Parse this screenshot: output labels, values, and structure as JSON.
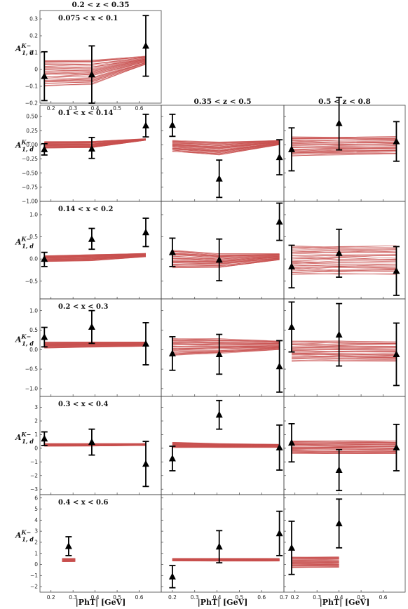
{
  "figure": {
    "column_titles": [
      "0.2 < z < 0.35",
      "0.35 < z < 0.5",
      "0.5 < z < 0.8"
    ],
    "row_titles": [
      "0.075 < x < 0.1",
      "0.1 < x < 0.14",
      "0.14 < x < 0.2",
      "0.2 < x < 0.3",
      "0.3 < x < 0.4",
      "0.4 < x < 0.6"
    ],
    "ylabel": "A1,d^K−",
    "xlabel": "|PhT| [GeV]",
    "colors": {
      "band": "#c8504f",
      "data": "#000000",
      "axes": "#444444"
    }
  },
  "chart_data": {
    "type": "scatter",
    "xlabel": "|PhT| [GeV]",
    "ylabel": "A1,d^K−",
    "xlim": [
      0.15,
      0.7
    ],
    "x_ticks": [
      0.2,
      0.3,
      0.4,
      0.5,
      0.6
    ],
    "x_ticks_col2": [
      0.2,
      0.3,
      0.4,
      0.5,
      0.6,
      0.7
    ],
    "rows": [
      {
        "label": "0.075 < x < 0.1",
        "ylim": [
          -0.2,
          0.35
        ],
        "yticks": [
          -0.2,
          -0.1,
          0.0,
          0.1,
          0.2,
          0.3
        ],
        "ytick_labels": [
          "−0.2",
          "−0.1",
          "0",
          "0.1",
          "0.2",
          "0.3"
        ]
      },
      {
        "label": "0.1 < x < 0.14",
        "ylim": [
          -1.0,
          0.7
        ],
        "yticks": [
          -1.0,
          -0.75,
          -0.5,
          -0.25,
          0.0,
          0.25,
          0.5
        ],
        "ytick_labels": [
          "−1.00",
          "−0.75",
          "−0.50",
          "−0.25",
          "0.00",
          "0.25",
          "0.50"
        ]
      },
      {
        "label": "0.14 < x < 0.2",
        "ylim": [
          -0.9,
          1.3
        ],
        "yticks": [
          -0.5,
          0.0,
          0.5,
          1.0
        ],
        "ytick_labels": [
          "−0.5",
          "0.0",
          "0.5",
          "1.0"
        ]
      },
      {
        "label": "0.2 < x < 0.3",
        "ylim": [
          -1.2,
          1.3
        ],
        "yticks": [
          -1.0,
          -0.5,
          0.0,
          0.5,
          1.0
        ],
        "ytick_labels": [
          "−1.0",
          "−0.5",
          "0.0",
          "0.5",
          "1.0"
        ]
      },
      {
        "label": "0.3 < x < 0.4",
        "ylim": [
          -3.4,
          3.8
        ],
        "yticks": [
          -3,
          -2,
          -1,
          0,
          1,
          2,
          3
        ],
        "ytick_labels": [
          "−3",
          "−2",
          "−1",
          "0",
          "1",
          "2",
          "3"
        ]
      },
      {
        "label": "0.4 < x < 0.6",
        "ylim": [
          -2.5,
          6.3
        ],
        "yticks": [
          -2,
          -1,
          0,
          1,
          2,
          3,
          4,
          5,
          6
        ],
        "ytick_labels": [
          "−2",
          "−1",
          "0",
          "1",
          "2",
          "3",
          "4",
          "5",
          "6"
        ]
      }
    ],
    "panels": [
      {
        "row": 0,
        "col": 0,
        "x": [
          0.17,
          0.385,
          0.63
        ],
        "y": [
          -0.04,
          -0.03,
          0.14
        ],
        "yerr_low": [
          0.145,
          0.17,
          0.18
        ],
        "yerr_high": [
          0.145,
          0.17,
          0.18
        ],
        "band": {
          "x": [
            0.17,
            0.385,
            0.63
          ],
          "lo": [
            -0.1,
            -0.09,
            0.03
          ],
          "hi": [
            0.06,
            0.06,
            0.08
          ]
        }
      },
      {
        "row": 1,
        "col": 0,
        "x": [
          0.17,
          0.385,
          0.63
        ],
        "y": [
          -0.08,
          -0.07,
          0.34
        ],
        "yerr_low": [
          0.1,
          0.17,
          0.2
        ],
        "yerr_high": [
          0.1,
          0.2,
          0.2
        ],
        "band": {
          "x": [
            0.17,
            0.385,
            0.63
          ],
          "lo": [
            -0.06,
            -0.05,
            0.08
          ],
          "hi": [
            0.06,
            0.06,
            0.11
          ]
        }
      },
      {
        "row": 1,
        "col": 1,
        "x": [
          0.2,
          0.41,
          0.68
        ],
        "y": [
          0.35,
          -0.6,
          -0.22
        ],
        "yerr_low": [
          0.2,
          0.33,
          0.31
        ],
        "yerr_high": [
          0.19,
          0.33,
          0.31
        ],
        "band": {
          "x": [
            0.2,
            0.41,
            0.68
          ],
          "lo": [
            -0.12,
            -0.18,
            0.0
          ],
          "hi": [
            0.08,
            0.05,
            0.08
          ]
        }
      },
      {
        "row": 1,
        "col": 2,
        "x": [
          0.185,
          0.4,
          0.66
        ],
        "y": [
          -0.08,
          0.38,
          0.06
        ],
        "yerr_low": [
          0.38,
          0.47,
          0.35
        ],
        "yerr_high": [
          0.38,
          0.46,
          0.35
        ],
        "band": {
          "x": [
            0.185,
            0.4,
            0.66
          ],
          "lo": [
            -0.2,
            -0.18,
            -0.16
          ],
          "hi": [
            0.15,
            0.15,
            0.15
          ]
        }
      },
      {
        "row": 2,
        "col": 0,
        "x": [
          0.17,
          0.385,
          0.63
        ],
        "y": [
          0.0,
          0.45,
          0.6
        ],
        "yerr_low": [
          0.17,
          0.23,
          0.32
        ],
        "yerr_high": [
          0.15,
          0.24,
          0.32
        ],
        "band": {
          "x": [
            0.17,
            0.385,
            0.63
          ],
          "lo": [
            -0.06,
            -0.04,
            0.05
          ],
          "hi": [
            0.08,
            0.1,
            0.13
          ]
        }
      },
      {
        "row": 2,
        "col": 1,
        "x": [
          0.2,
          0.41,
          0.68
        ],
        "y": [
          0.15,
          -0.02,
          0.84
        ],
        "yerr_low": [
          0.32,
          0.47,
          0.42
        ],
        "yerr_high": [
          0.32,
          0.47,
          0.42
        ],
        "band": {
          "x": [
            0.2,
            0.41,
            0.68
          ],
          "lo": [
            -0.2,
            -0.2,
            -0.02
          ],
          "hi": [
            0.2,
            0.12,
            0.12
          ]
        }
      },
      {
        "row": 2,
        "col": 2,
        "x": [
          0.185,
          0.4,
          0.66
        ],
        "y": [
          -0.17,
          0.13,
          -0.27
        ],
        "yerr_low": [
          0.48,
          0.54,
          0.55
        ],
        "yerr_high": [
          0.48,
          0.54,
          0.55
        ],
        "band": {
          "x": [
            0.185,
            0.4,
            0.66
          ],
          "lo": [
            -0.35,
            -0.35,
            -0.35
          ],
          "hi": [
            0.3,
            0.3,
            0.3
          ]
        }
      },
      {
        "row": 3,
        "col": 0,
        "x": [
          0.17,
          0.385,
          0.63
        ],
        "y": [
          0.32,
          0.58,
          0.15
        ],
        "yerr_low": [
          0.25,
          0.42,
          0.54
        ],
        "yerr_high": [
          0.25,
          0.42,
          0.54
        ],
        "band": {
          "x": [
            0.17,
            0.385,
            0.63
          ],
          "lo": [
            0.04,
            0.06,
            0.08
          ],
          "hi": [
            0.2,
            0.2,
            0.2
          ]
        }
      },
      {
        "row": 3,
        "col": 1,
        "x": [
          0.2,
          0.41,
          0.68
        ],
        "y": [
          -0.1,
          -0.12,
          -0.43
        ],
        "yerr_low": [
          0.43,
          0.51,
          0.66
        ],
        "yerr_high": [
          0.43,
          0.51,
          0.66
        ],
        "band": {
          "x": [
            0.2,
            0.41,
            0.68
          ],
          "lo": [
            -0.15,
            -0.1,
            0.0
          ],
          "hi": [
            0.3,
            0.28,
            0.22
          ]
        }
      },
      {
        "row": 3,
        "col": 2,
        "x": [
          0.185,
          0.4,
          0.66
        ],
        "y": [
          0.58,
          0.38,
          -0.12
        ],
        "yerr_low": [
          0.64,
          0.8,
          0.8
        ],
        "yerr_high": [
          0.64,
          0.8,
          0.8
        ],
        "band": {
          "x": [
            0.185,
            0.4,
            0.66
          ],
          "lo": [
            -0.3,
            -0.3,
            -0.3
          ],
          "hi": [
            0.22,
            0.22,
            0.22
          ]
        }
      },
      {
        "row": 4,
        "col": 0,
        "x": [
          0.17,
          0.385,
          0.63
        ],
        "y": [
          0.7,
          0.45,
          -1.15
        ],
        "yerr_low": [
          0.5,
          0.95,
          1.65
        ],
        "yerr_high": [
          0.5,
          0.95,
          1.65
        ],
        "band": {
          "x": [
            0.17,
            0.385,
            0.63
          ],
          "lo": [
            0.15,
            0.15,
            0.2
          ],
          "hi": [
            0.35,
            0.35,
            0.35
          ]
        }
      },
      {
        "row": 4,
        "col": 1,
        "x": [
          0.2,
          0.41,
          0.68
        ],
        "y": [
          -0.75,
          2.45,
          0.05
        ],
        "yerr_low": [
          0.9,
          1.05,
          1.65
        ],
        "yerr_high": [
          0.9,
          1.05,
          1.65
        ],
        "band": {
          "x": [
            0.2,
            0.41,
            0.68
          ],
          "lo": [
            0.05,
            0.05,
            0.05
          ],
          "hi": [
            0.45,
            0.35,
            0.3
          ]
        }
      },
      {
        "row": 4,
        "col": 2,
        "x": [
          0.185,
          0.4,
          0.66
        ],
        "y": [
          0.4,
          -1.6,
          0.05
        ],
        "yerr_low": [
          1.4,
          1.5,
          1.7
        ],
        "yerr_high": [
          1.4,
          1.5,
          1.7
        ],
        "band": {
          "x": [
            0.185,
            0.4,
            0.66
          ],
          "lo": [
            -0.4,
            -0.4,
            -0.4
          ],
          "hi": [
            0.55,
            0.55,
            0.55
          ]
        }
      },
      {
        "row": 5,
        "col": 0,
        "x": [
          0.28
        ],
        "y": [
          1.65
        ],
        "yerr_low": [
          0.85
        ],
        "yerr_high": [
          0.85
        ],
        "band": {
          "x": [
            0.25,
            0.31
          ],
          "lo": [
            0.25,
            0.25
          ],
          "hi": [
            0.55,
            0.55
          ]
        }
      },
      {
        "row": 5,
        "col": 1,
        "x": [
          0.2,
          0.41,
          0.68
        ],
        "y": [
          -1.1,
          1.6,
          2.8
        ],
        "yerr_low": [
          1.0,
          1.45,
          2.0
        ],
        "yerr_high": [
          1.0,
          1.45,
          2.0
        ],
        "band": {
          "x": [
            0.2,
            0.41,
            0.68
          ],
          "lo": [
            0.3,
            0.3,
            0.3
          ],
          "hi": [
            0.55,
            0.55,
            0.55
          ]
        }
      },
      {
        "row": 5,
        "col": 2,
        "x": [
          0.185,
          0.4
        ],
        "y": [
          1.5,
          3.7
        ],
        "yerr_low": [
          2.4,
          2.2
        ],
        "yerr_high": [
          2.4,
          2.2
        ],
        "band": {
          "x": [
            0.185,
            0.4
          ],
          "lo": [
            -0.3,
            -0.3
          ],
          "hi": [
            0.7,
            0.7
          ]
        }
      }
    ]
  }
}
